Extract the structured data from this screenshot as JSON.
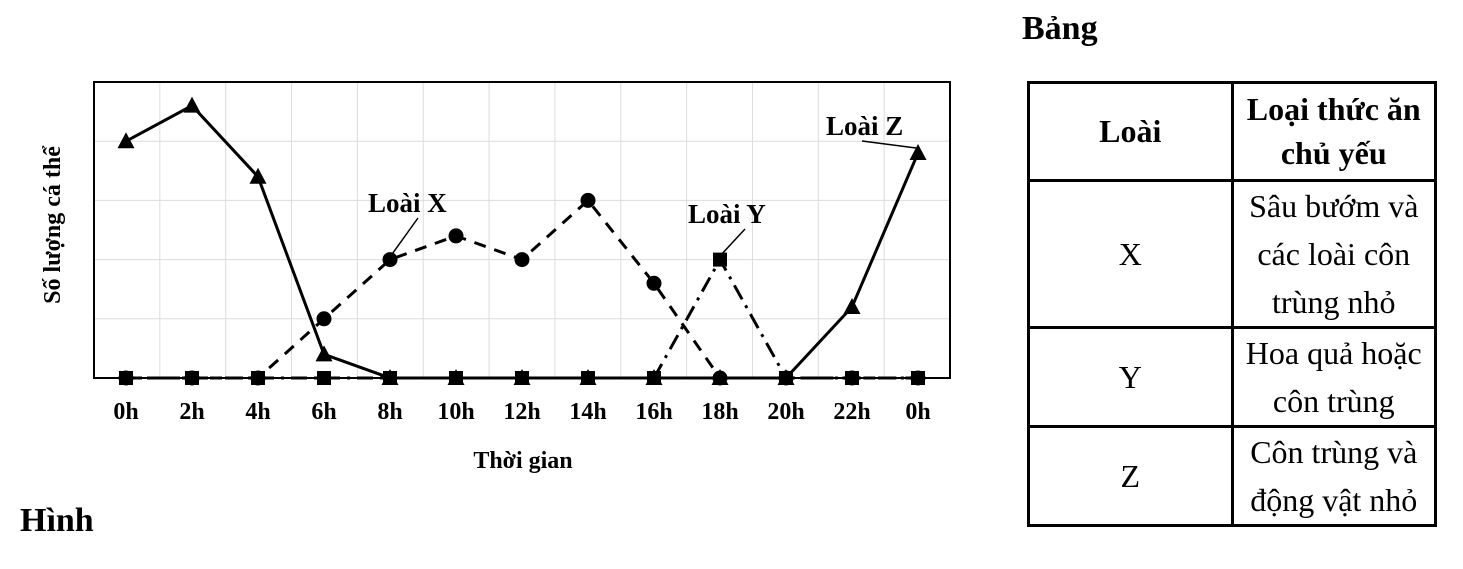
{
  "figure_caption": "Hình",
  "table_caption": "Bảng",
  "chart_data": {
    "type": "line",
    "ylabel": "Số lượng cá thể",
    "xlabel": "Thời gian",
    "categories": [
      "0h",
      "2h",
      "4h",
      "6h",
      "8h",
      "10h",
      "12h",
      "14h",
      "16h",
      "18h",
      "20h",
      "22h",
      "0h"
    ],
    "ylim": [
      0,
      5
    ],
    "grid": true,
    "series": [
      {
        "name": "Loài X",
        "marker": "circle",
        "line_style": "dashed",
        "values": [
          0,
          0,
          0,
          1,
          2,
          2.4,
          2,
          3,
          1.6,
          0,
          0,
          0,
          0
        ]
      },
      {
        "name": "Loài Y",
        "marker": "square",
        "line_style": "dash-dot",
        "values": [
          0,
          0,
          0,
          0,
          0,
          0,
          0,
          0,
          0,
          2,
          0,
          0,
          0
        ]
      },
      {
        "name": "Loài Z",
        "marker": "triangle",
        "line_style": "solid",
        "values": [
          4,
          4.6,
          3.4,
          0.4,
          0,
          0,
          0,
          0,
          0,
          0,
          0,
          1.2,
          3.8
        ]
      }
    ]
  },
  "table": {
    "headers": [
      "Loài",
      "Loại thức ăn chủ yếu"
    ],
    "rows": [
      {
        "species": "X",
        "food": "Sâu bướm và các loài côn trùng nhỏ"
      },
      {
        "species": "Y",
        "food": "Hoa quả hoặc côn trùng"
      },
      {
        "species": "Z",
        "food": "Côn trùng và động vật nhỏ"
      }
    ]
  }
}
